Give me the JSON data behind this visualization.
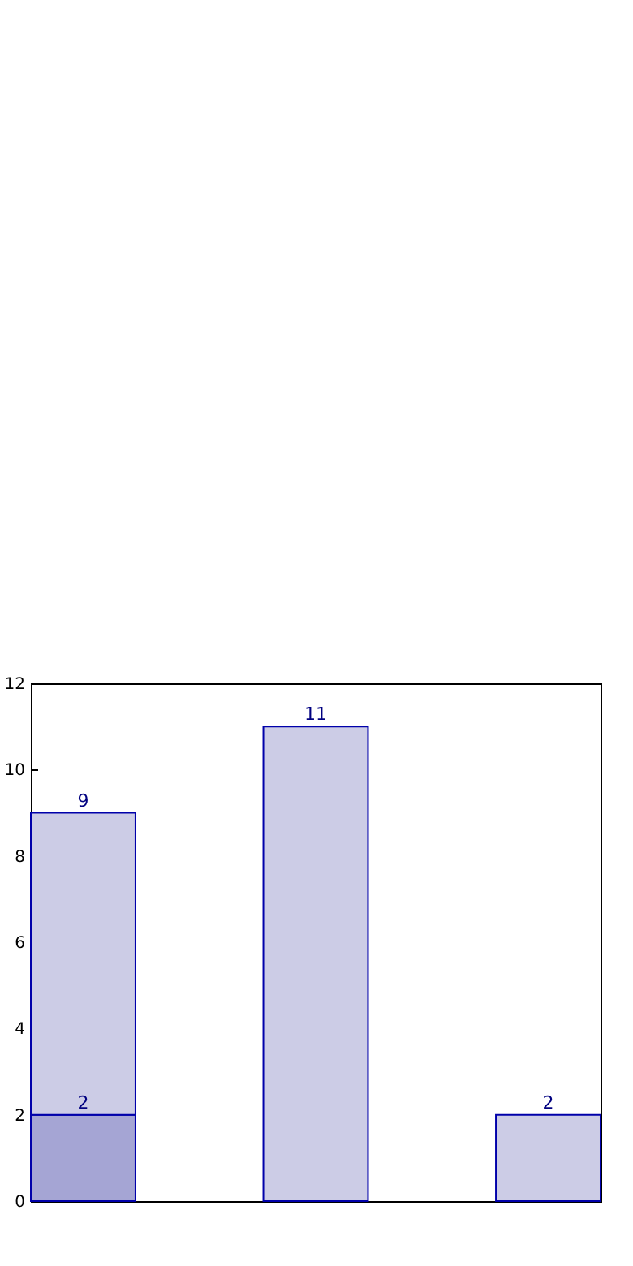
{
  "chart_data": {
    "type": "bar",
    "categories": [
      null,
      null,
      null
    ],
    "stacked": true,
    "series": [
      {
        "color": "#a5a5d4",
        "values": [
          2,
          0,
          0
        ],
        "value_labels": [
          "2",
          null,
          null
        ]
      },
      {
        "color": "#cccce6",
        "values": [
          7,
          11,
          2
        ]
      }
    ],
    "totals": [
      "9",
      "11",
      "2"
    ],
    "ylim": [
      0,
      12
    ],
    "yticks": [
      0,
      2,
      4,
      6,
      8,
      10,
      12
    ],
    "tick_labels": "y"
  }
}
